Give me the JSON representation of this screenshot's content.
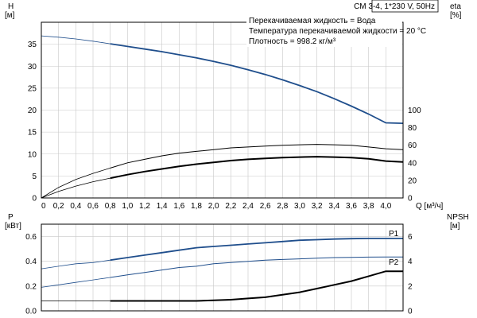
{
  "chart_data": [
    {
      "type": "line",
      "title": "CM 3-4, 1*230 V, 50Hz",
      "info_lines": [
        "Перекачиваемая жидкость = Вода",
        "Температура перекачиваемой жидкости = 20 °C",
        "Плотность = 998.2 кг/м³"
      ],
      "xlabel": "Q [м³/ч]",
      "x_ticks": [
        "0",
        "0,2",
        "0,4",
        "0,6",
        "0,8",
        "1,0",
        "1,2",
        "1,4",
        "1,6",
        "1,8",
        "2,0",
        "2,2",
        "2,4",
        "2,6",
        "2,8",
        "3,0",
        "3,2",
        "3,4",
        "3,6",
        "3,8",
        "4,0"
      ],
      "xlim": [
        0,
        4.2
      ],
      "y_left_label": [
        "H",
        "[м]"
      ],
      "y_left_ticks": [
        "0",
        "5",
        "10",
        "15",
        "20",
        "25",
        "30",
        "35"
      ],
      "y_left_lim": [
        0,
        40
      ],
      "y_right_label": [
        "eta",
        "[%]"
      ],
      "y_right_ticks": [
        "0",
        "20",
        "40",
        "60",
        "80",
        "100"
      ],
      "y_right_lim": [
        0,
        200
      ],
      "grid": true,
      "x": [
        0,
        0.2,
        0.4,
        0.6,
        0.8,
        1.0,
        1.2,
        1.4,
        1.6,
        1.8,
        2.0,
        2.2,
        2.4,
        2.6,
        2.8,
        3.0,
        3.2,
        3.4,
        3.6,
        3.8,
        4.0,
        4.2
      ],
      "series": [
        {
          "axis": "left",
          "color": "#1f4e8c",
          "width": 1.8,
          "thin_color": "#1f4e8c",
          "values": [
            36.9,
            36.6,
            36.2,
            35.7,
            35.1,
            34.5,
            33.9,
            33.3,
            32.6,
            31.9,
            31.1,
            30.2,
            29.2,
            28.1,
            26.9,
            25.6,
            24.2,
            22.6,
            20.9,
            19.1,
            17.1,
            17.0
          ]
        },
        {
          "axis": "right",
          "color": "#000000",
          "width": 1.0,
          "thin_color": "#000000",
          "values": [
            0,
            12,
            21,
            28,
            34,
            40,
            44,
            48,
            51,
            53,
            55,
            57,
            58,
            59,
            60,
            60.5,
            61,
            60.5,
            60,
            58,
            56,
            55
          ]
        },
        {
          "axis": "left",
          "color": "#000000",
          "width": 2.0,
          "thin_color": "#000000",
          "values": [
            0,
            1.5,
            2.7,
            3.7,
            4.5,
            5.3,
            6.0,
            6.6,
            7.2,
            7.7,
            8.1,
            8.5,
            8.8,
            9.0,
            9.2,
            9.3,
            9.4,
            9.3,
            9.2,
            8.9,
            8.4,
            8.2
          ]
        }
      ]
    },
    {
      "type": "line",
      "xlim": [
        0,
        4.2
      ],
      "y_left_label": [
        "P",
        "[кВт]"
      ],
      "y_left_ticks": [
        "0.0",
        "0.2",
        "0.4",
        "0.6"
      ],
      "y_left_lim": [
        0,
        0.7
      ],
      "y_right_label": [
        "NPSH",
        "[м]"
      ],
      "y_right_ticks": [
        "0",
        "2",
        "4",
        "6"
      ],
      "y_right_lim": [
        0,
        7
      ],
      "grid": true,
      "x": [
        0,
        0.2,
        0.4,
        0.6,
        0.8,
        1.0,
        1.2,
        1.4,
        1.6,
        1.8,
        2.0,
        2.2,
        2.4,
        2.6,
        2.8,
        3.0,
        3.2,
        3.4,
        3.6,
        3.8,
        4.0,
        4.2
      ],
      "series": [
        {
          "name": "P1",
          "axis": "left",
          "color": "#1f4e8c",
          "width": 1.8,
          "values": [
            0.34,
            0.36,
            0.38,
            0.39,
            0.41,
            0.43,
            0.45,
            0.47,
            0.49,
            0.51,
            0.52,
            0.53,
            0.54,
            0.55,
            0.56,
            0.57,
            0.575,
            0.58,
            0.583,
            0.585,
            0.585,
            0.585
          ]
        },
        {
          "name": "P2",
          "axis": "left",
          "color": "#1f4e8c",
          "width": 1.0,
          "values": [
            0.19,
            0.21,
            0.23,
            0.25,
            0.27,
            0.29,
            0.31,
            0.33,
            0.35,
            0.36,
            0.38,
            0.39,
            0.4,
            0.41,
            0.415,
            0.42,
            0.425,
            0.43,
            0.432,
            0.434,
            0.435,
            0.435
          ]
        },
        {
          "axis": "right",
          "color": "#000000",
          "width": 2.0,
          "values": [
            0.8,
            0.8,
            0.8,
            0.8,
            0.8,
            0.8,
            0.8,
            0.8,
            0.8,
            0.8,
            0.85,
            0.9,
            1.0,
            1.1,
            1.3,
            1.5,
            1.8,
            2.1,
            2.4,
            2.8,
            3.2,
            3.2
          ]
        }
      ]
    }
  ]
}
